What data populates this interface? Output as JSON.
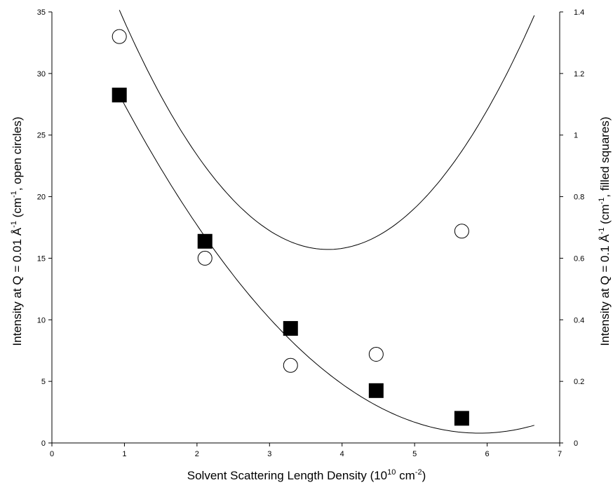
{
  "chart_data": {
    "type": "scatter",
    "title": "",
    "xlabel": {
      "main": "Solvent Scattering Length Density (10",
      "sup": "10",
      "mid": " cm",
      "sup2": "-2",
      "end": ")"
    },
    "ylabel_left": {
      "main": "Intensity at Q = 0.01 Å",
      "sup": "-1",
      "mid": " (cm",
      "sup2": "-1",
      "end": ", open circles)"
    },
    "ylabel_right": {
      "main": "Intensity at Q = 0.1 Å",
      "sup": "-1",
      "mid": " (cm",
      "sup2": "-1",
      "end": ", filled squares)"
    },
    "xlim": [
      0,
      7
    ],
    "ylim_left": [
      0,
      35
    ],
    "ylim_right": [
      0,
      1.4
    ],
    "x_ticks": [
      "0",
      "1",
      "2",
      "3",
      "4",
      "5",
      "6",
      "7"
    ],
    "y_left_ticks": [
      "0",
      "5",
      "10",
      "15",
      "20",
      "25",
      "30",
      "35"
    ],
    "y_right_ticks": [
      "0",
      "0.2",
      "0.4",
      "0.6",
      "0.8",
      "1",
      "1.2",
      "1.4"
    ],
    "grid": false,
    "legend": "none",
    "series": [
      {
        "axis": "left",
        "marker": "open-circle",
        "x": [
          0.93,
          2.11,
          3.29,
          4.47,
          5.65
        ],
        "y": [
          33.0,
          15.0,
          6.3,
          7.2,
          17.2
        ],
        "fit": {
          "x": [
            0.93,
            6.65
          ],
          "quadratic": [
            2.35,
            -17.89,
            49.76
          ]
        }
      },
      {
        "axis": "right",
        "marker": "filled-square",
        "x": [
          0.93,
          2.11,
          3.29,
          4.47,
          5.65
        ],
        "y": [
          1.13,
          0.655,
          0.372,
          0.17,
          0.08
        ],
        "fit": {
          "x": [
            0.93,
            6.65
          ],
          "quadratic": [
            0.0446,
            -0.5256,
            1.5803
          ]
        }
      }
    ]
  }
}
